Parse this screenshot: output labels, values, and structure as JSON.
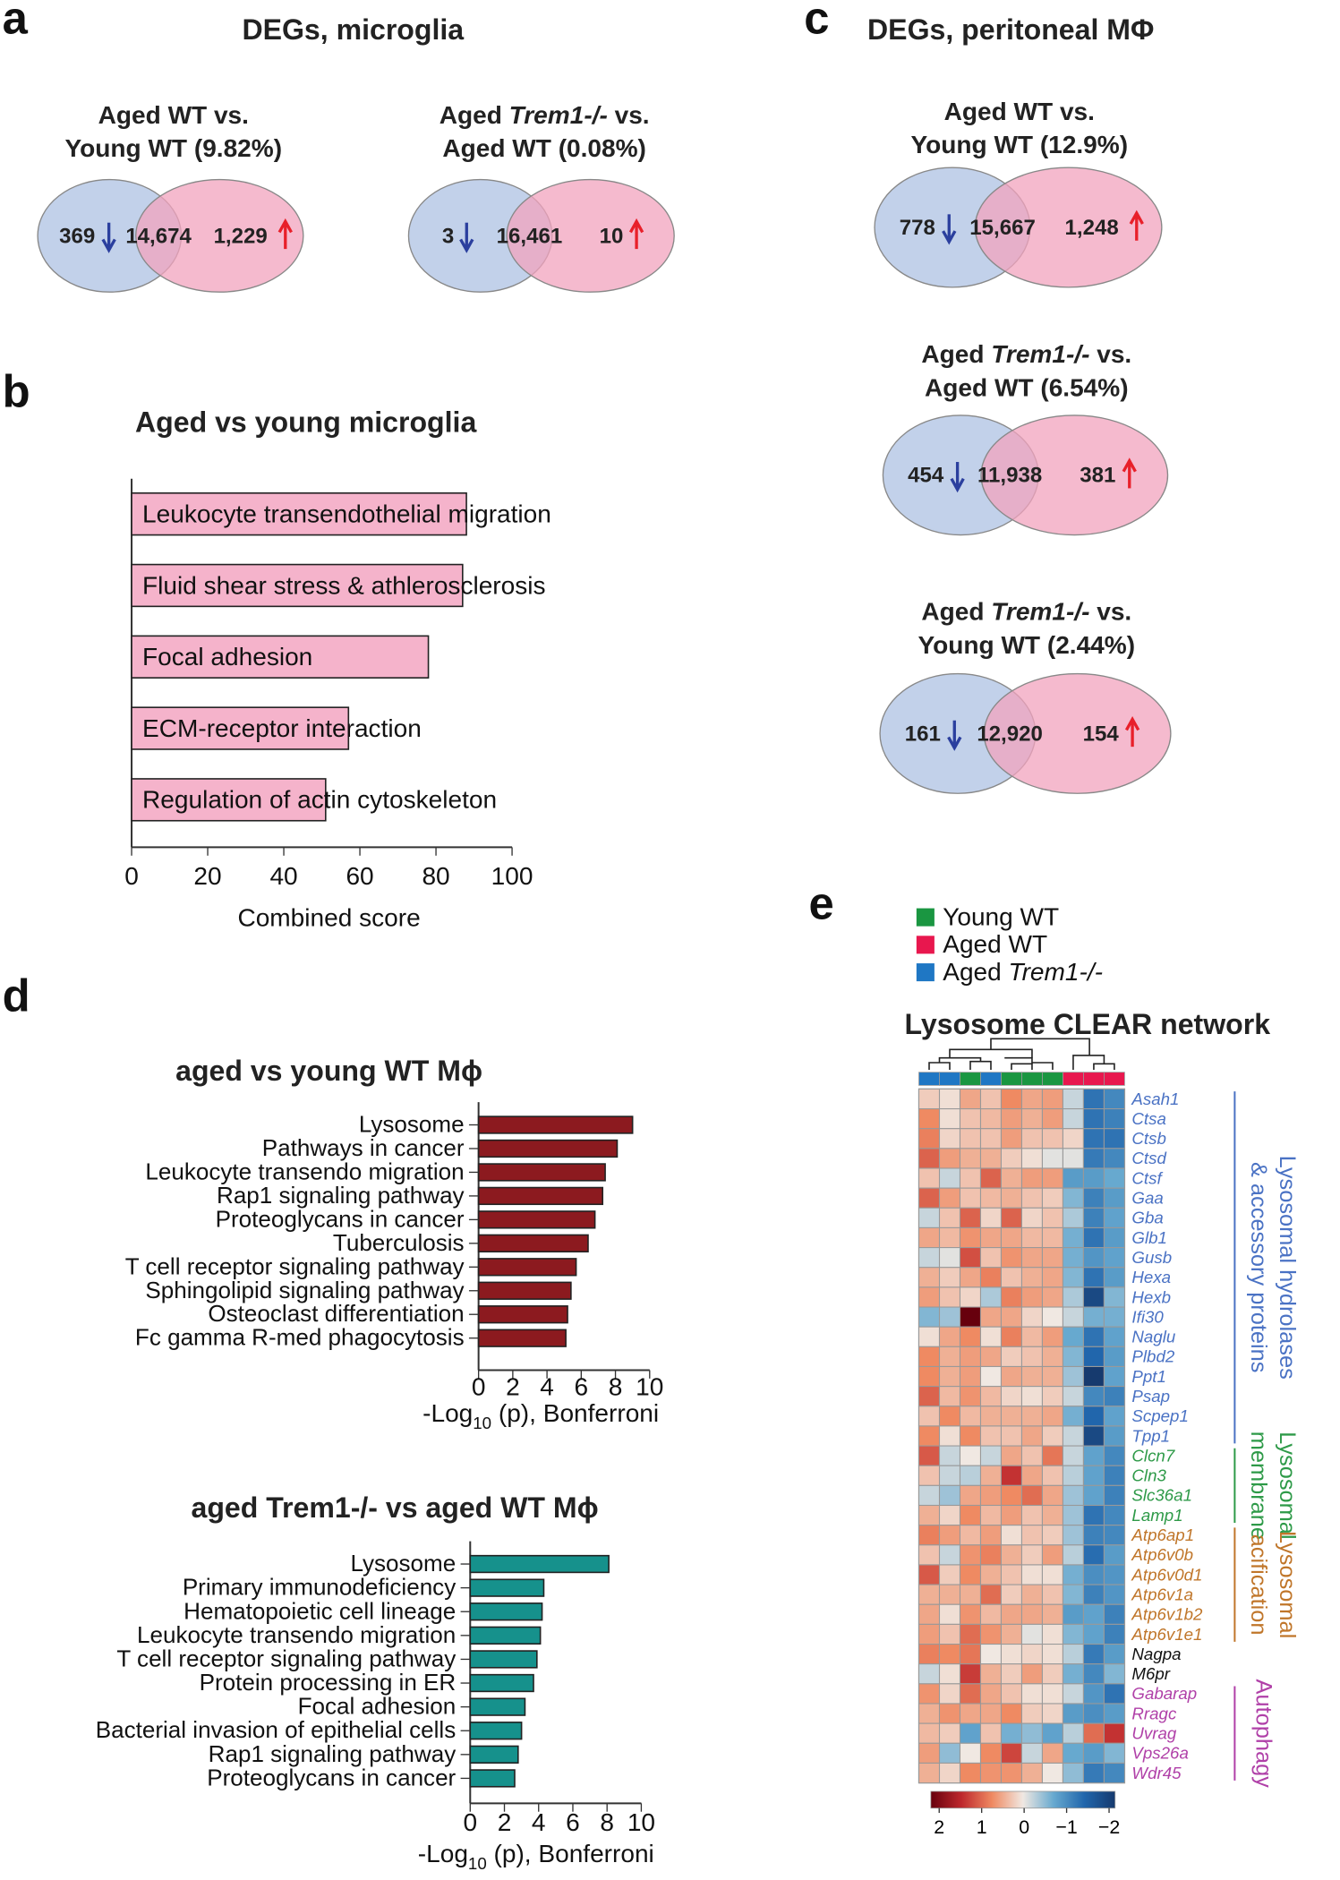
{
  "panel_letters": {
    "a": "a",
    "b": "b",
    "c": "c",
    "d": "d",
    "e": "e"
  },
  "panel_a": {
    "title": "DEGs, microglia",
    "venns": [
      {
        "title": [
          [
            {
              "t": "Aged WT vs."
            }
          ],
          [
            {
              "t": "Young WT (9.82%)"
            }
          ]
        ],
        "down": "369",
        "overlap": "14,674",
        "up": "1,229"
      },
      {
        "title": [
          [
            {
              "t": "Aged "
            },
            {
              "t": "Trem1-/-",
              "i": true
            },
            {
              "t": " vs."
            }
          ],
          [
            {
              "t": "Aged WT (0.08%)"
            }
          ]
        ],
        "down": "3",
        "overlap": "16,461",
        "up": "10"
      }
    ]
  },
  "panel_c": {
    "title": "DEGs, peritoneal MΦ",
    "venns": [
      {
        "title": [
          [
            {
              "t": "Aged WT vs."
            }
          ],
          [
            {
              "t": "Young WT (12.9%)"
            }
          ]
        ],
        "down": "778",
        "overlap": "15,667",
        "up": "1,248"
      },
      {
        "title": [
          [
            {
              "t": "Aged "
            },
            {
              "t": "Trem1-/-",
              "i": true
            },
            {
              "t": " vs."
            }
          ],
          [
            {
              "t": "Aged WT (6.54%)"
            }
          ]
        ],
        "down": "454",
        "overlap": "11,938",
        "up": "381"
      },
      {
        "title": [
          [
            {
              "t": "Aged "
            },
            {
              "t": "Trem1-/-",
              "i": true
            },
            {
              "t": " vs."
            }
          ],
          [
            {
              "t": "Young WT (2.44%)"
            }
          ]
        ],
        "down": "161",
        "overlap": "12,920",
        "up": "154"
      }
    ]
  },
  "colors": {
    "venn_left": "#b7c9e6",
    "venn_right": "#f2a3be",
    "down_arrow": "#2b3f9e",
    "up_arrow": "#e8202a",
    "bar_b": "#f5b3cb",
    "bar_d1": "#8c1a1f",
    "bar_d2": "#16918c"
  },
  "chart_data": [
    {
      "id": "b",
      "type": "bar",
      "orientation": "horizontal",
      "title": "Aged vs young microglia",
      "categories": [
        "Leukocyte transendothelial migration",
        "Fluid shear stress & athlerosclerosis",
        "Focal adhesion",
        "ECM-receptor interaction",
        "Regulation of actin cytoskeleton"
      ],
      "values": [
        88,
        87,
        78,
        57,
        51
      ],
      "xlabel": "Combined score",
      "xlim": [
        0,
        100
      ],
      "ticks": [
        "0",
        "20",
        "40",
        "60",
        "80",
        "100"
      ]
    },
    {
      "id": "d1",
      "type": "bar",
      "orientation": "horizontal",
      "title": "aged vs young WT Mϕ",
      "categories": [
        "Lysosome",
        "Pathways in cancer",
        "Leukocyte transendo migration",
        "Rap1 signaling pathway",
        "Proteoglycans in cancer",
        "Tuberculosis",
        "T cell receptor signaling pathway",
        "Sphingolipid signaling pathway",
        "Osteoclast differentiation",
        "Fc gamma R-med phagocytosis"
      ],
      "values": [
        9.0,
        8.1,
        7.4,
        7.25,
        6.8,
        6.4,
        5.7,
        5.4,
        5.2,
        5.1
      ],
      "xlabel": {
        "pre": "-Log",
        "sub": "10",
        "post": " (p), Bonferroni"
      },
      "xlim": [
        0,
        10
      ],
      "ticks": [
        "0",
        "2",
        "4",
        "6",
        "8",
        "10"
      ]
    },
    {
      "id": "d2",
      "type": "bar",
      "orientation": "horizontal",
      "title": "aged Trem1-/- vs aged WT Mϕ",
      "categories": [
        "Lysosome",
        "Primary immunodeficiency",
        "Hematopoietic cell lineage",
        "Leukocyte transendo migration",
        "T cell receptor signaling pathway",
        "Protein processing in ER",
        "Focal adhesion",
        "Bacterial invasion of epithelial cells",
        "Rap1 signaling pathway",
        "Proteoglycans in cancer"
      ],
      "values": [
        8.1,
        4.3,
        4.2,
        4.1,
        3.9,
        3.7,
        3.2,
        3.0,
        2.8,
        2.6
      ],
      "xlabel": {
        "pre": "-Log",
        "sub": "10",
        "post": " (p), Bonferroni"
      },
      "xlim": [
        0,
        10
      ],
      "ticks": [
        "0",
        "2",
        "4",
        "6",
        "8",
        "10"
      ]
    },
    {
      "id": "e",
      "type": "heatmap",
      "title": "Lysosome CLEAR network",
      "legend": [
        {
          "label": [
            {
              "t": "Young WT"
            }
          ],
          "color": "#1a9641"
        },
        {
          "label": [
            {
              "t": "Aged WT"
            }
          ],
          "color": "#e8174e"
        },
        {
          "label": [
            {
              "t": "Aged "
            },
            {
              "t": "Trem1-/-",
              "i": true
            }
          ],
          "color": "#1f77c4"
        }
      ],
      "column_groups": [
        2,
        2,
        0,
        2,
        0,
        0,
        0,
        1,
        1,
        1
      ],
      "genes": [
        "Asah1",
        "Ctsa",
        "Ctsb",
        "Ctsd",
        "Ctsf",
        "Gaa",
        "Gba",
        "Glb1",
        "Gusb",
        "Hexa",
        "Hexb",
        "Ifi30",
        "Naglu",
        "Plbd2",
        "Ppt1",
        "Psap",
        "Scpep1",
        "Tpp1",
        "Clcn7",
        "Cln3",
        "Slc36a1",
        "Lamp1",
        "Atp6ap1",
        "Atp6v0b",
        "Atp6v0d1",
        "Atp6v1a",
        "Atp6v1b2",
        "Atp6v1e1",
        "Nagpa",
        "M6pr",
        "Gabarap",
        "Rragc",
        "Uvrag",
        "Vps26a",
        "Wdr45"
      ],
      "gene_group": [
        0,
        0,
        0,
        0,
        0,
        0,
        0,
        0,
        0,
        0,
        0,
        0,
        0,
        0,
        0,
        0,
        0,
        0,
        1,
        1,
        1,
        1,
        2,
        2,
        2,
        2,
        2,
        2,
        3,
        3,
        4,
        4,
        4,
        4,
        4
      ],
      "group_colors": [
        "#4a72c4",
        "#2e9a48",
        "#c0762a",
        "#111111",
        "#b040a8"
      ],
      "groups": [
        {
          "lines": [
            "Lysosomal hydrolases",
            "& accessory proteins"
          ],
          "rows": [
            0,
            17
          ]
        },
        {
          "lines": [
            "Lysosomal",
            "membrane"
          ],
          "rows": [
            18,
            21
          ]
        },
        {
          "lines": [
            "Lysosomal",
            "acification"
          ],
          "rows": [
            22,
            27
          ]
        },
        {
          "lines": [
            "Autophagy"
          ],
          "rows": [
            30,
            34
          ]
        }
      ],
      "values": [
        [
          0.3,
          0.1,
          0.7,
          0.4,
          1.0,
          0.7,
          0.8,
          -0.3,
          -1.8,
          -1.5
        ],
        [
          1.0,
          0.1,
          0.4,
          0.5,
          0.8,
          0.6,
          0.8,
          -0.3,
          -1.8,
          -1.6
        ],
        [
          1.1,
          0.2,
          0.4,
          0.4,
          0.8,
          0.4,
          0.4,
          0.2,
          -1.8,
          -1.8
        ],
        [
          1.4,
          0.8,
          0.6,
          0.6,
          0.3,
          0.1,
          -0.1,
          -0.1,
          -1.7,
          -1.5
        ],
        [
          0.4,
          -0.3,
          0.4,
          1.4,
          0.6,
          0.8,
          0.8,
          -1.2,
          -1.2,
          -1.0
        ],
        [
          1.4,
          0.8,
          0.4,
          0.5,
          0.6,
          0.4,
          0.3,
          -0.8,
          -1.6,
          -1.2
        ],
        [
          -0.3,
          0.4,
          1.4,
          0.2,
          1.4,
          0.2,
          0.4,
          -0.5,
          -1.6,
          -1.1
        ],
        [
          0.7,
          0.5,
          0.9,
          0.7,
          0.7,
          0.5,
          0.5,
          -0.9,
          -1.8,
          -1.2
        ],
        [
          -0.3,
          -0.1,
          1.6,
          0.4,
          0.9,
          0.7,
          0.7,
          -0.9,
          -1.3,
          -1.1
        ],
        [
          0.6,
          0.3,
          0.7,
          1.1,
          0.4,
          0.6,
          0.7,
          -0.8,
          -1.8,
          -1.2
        ],
        [
          0.8,
          0.4,
          0.2,
          -0.5,
          1.1,
          0.8,
          0.7,
          -0.5,
          -2.2,
          -0.8
        ],
        [
          -0.8,
          -0.6,
          2.3,
          0.7,
          0.7,
          0.2,
          0.0,
          -0.3,
          -0.9,
          -0.9
        ],
        [
          0.1,
          0.7,
          1.0,
          0.1,
          1.1,
          0.5,
          0.8,
          -1.0,
          -1.8,
          -1.1
        ],
        [
          1.0,
          0.6,
          0.8,
          0.7,
          0.3,
          0.4,
          0.6,
          -0.8,
          -2.0,
          -1.2
        ],
        [
          1.0,
          0.6,
          0.8,
          0.0,
          0.7,
          0.6,
          0.6,
          -0.6,
          -2.3,
          -1.1
        ],
        [
          1.4,
          0.5,
          0.9,
          0.5,
          0.2,
          0.1,
          0.3,
          -0.3,
          -1.5,
          -1.6
        ],
        [
          0.4,
          1.0,
          0.5,
          0.6,
          0.6,
          0.6,
          0.7,
          -0.9,
          -2.0,
          -1.1
        ],
        [
          1.0,
          0.1,
          1.0,
          0.4,
          0.4,
          0.7,
          0.3,
          -0.3,
          -2.2,
          -1.2
        ],
        [
          1.5,
          -0.3,
          0.0,
          -0.3,
          0.7,
          0.4,
          1.2,
          -0.3,
          -1.1,
          -1.5
        ],
        [
          0.4,
          -0.3,
          -0.4,
          0.6,
          1.9,
          0.7,
          0.4,
          -0.4,
          -1.1,
          -1.6
        ],
        [
          -0.3,
          -0.6,
          0.7,
          0.8,
          1.0,
          1.3,
          0.7,
          -0.6,
          -1.1,
          -1.6
        ],
        [
          0.6,
          0.2,
          1.0,
          0.5,
          0.8,
          0.4,
          0.6,
          -0.6,
          -1.8,
          -1.5
        ],
        [
          1.1,
          0.8,
          0.5,
          0.8,
          0.1,
          0.4,
          0.3,
          -0.6,
          -1.6,
          -1.5
        ],
        [
          0.4,
          -0.3,
          0.9,
          1.1,
          0.6,
          0.3,
          0.8,
          -0.4,
          -1.9,
          -1.2
        ],
        [
          1.5,
          0.3,
          1.0,
          0.6,
          0.4,
          0.1,
          0.1,
          -0.9,
          -1.4,
          -1.3
        ],
        [
          0.6,
          0.6,
          0.6,
          1.3,
          0.3,
          0.6,
          0.4,
          -0.8,
          -1.6,
          -1.3
        ],
        [
          0.7,
          0.1,
          0.9,
          0.5,
          0.7,
          0.7,
          0.6,
          -1.2,
          -1.1,
          -1.6
        ],
        [
          0.8,
          0.4,
          1.3,
          0.9,
          0.6,
          -0.1,
          0.1,
          -0.8,
          -1.1,
          -1.6
        ],
        [
          1.1,
          1.0,
          1.2,
          0.0,
          0.1,
          0.2,
          0.1,
          -0.4,
          -1.7,
          -1.2
        ],
        [
          -0.3,
          0.1,
          1.8,
          0.6,
          0.3,
          0.8,
          0.3,
          -0.9,
          -1.5,
          -0.8
        ],
        [
          0.9,
          0.2,
          1.3,
          0.7,
          0.4,
          0.1,
          0.1,
          -0.3,
          -1.3,
          -1.8
        ],
        [
          0.6,
          0.9,
          0.7,
          0.7,
          1.0,
          0.3,
          0.2,
          -1.2,
          -1.4,
          -1.2
        ],
        [
          0.5,
          0.3,
          -1.1,
          0.4,
          -0.9,
          -0.7,
          -1.1,
          -0.4,
          1.3,
          1.9
        ],
        [
          0.8,
          -0.7,
          0.0,
          1.0,
          1.7,
          -0.3,
          0.7,
          -1.0,
          -1.2,
          -0.8
        ],
        [
          0.6,
          0.2,
          1.0,
          0.9,
          0.9,
          0.6,
          0.0,
          -0.7,
          -1.7,
          -1.5
        ]
      ],
      "colorbar": {
        "range": [
          2,
          -2
        ],
        "ticks": [
          "2",
          "1",
          "0",
          "−1",
          "−2"
        ]
      }
    }
  ]
}
